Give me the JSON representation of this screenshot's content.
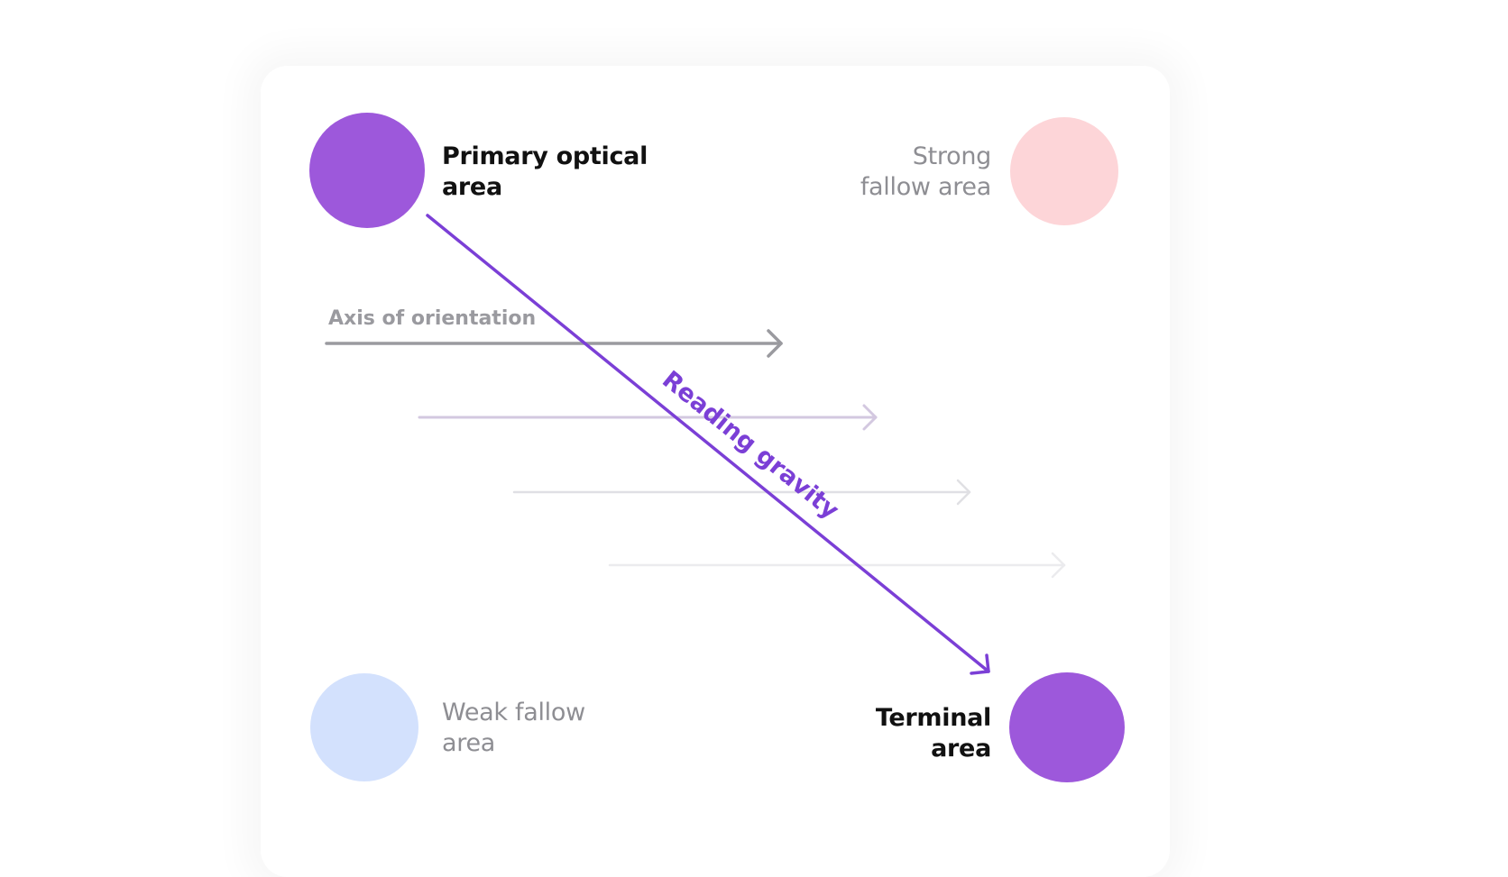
{
  "quadrants": {
    "primary": {
      "label_line1": "Primary optical",
      "label_line2": "area",
      "color": "#9d58db"
    },
    "strong_fallow": {
      "label_line1": "Strong",
      "label_line2": "fallow area",
      "color": "#fdd5d8"
    },
    "weak_fallow": {
      "label_line1": "Weak fallow",
      "label_line2": "area",
      "color": "#d3e1fd"
    },
    "terminal": {
      "label_line1": "Terminal",
      "label_line2": "area",
      "color": "#9d58db"
    }
  },
  "axis_label": "Axis of orientation",
  "gravity_label": "Reading gravity",
  "colors": {
    "gravity": "#7b3fd6",
    "axis": "#9a9a9f"
  }
}
